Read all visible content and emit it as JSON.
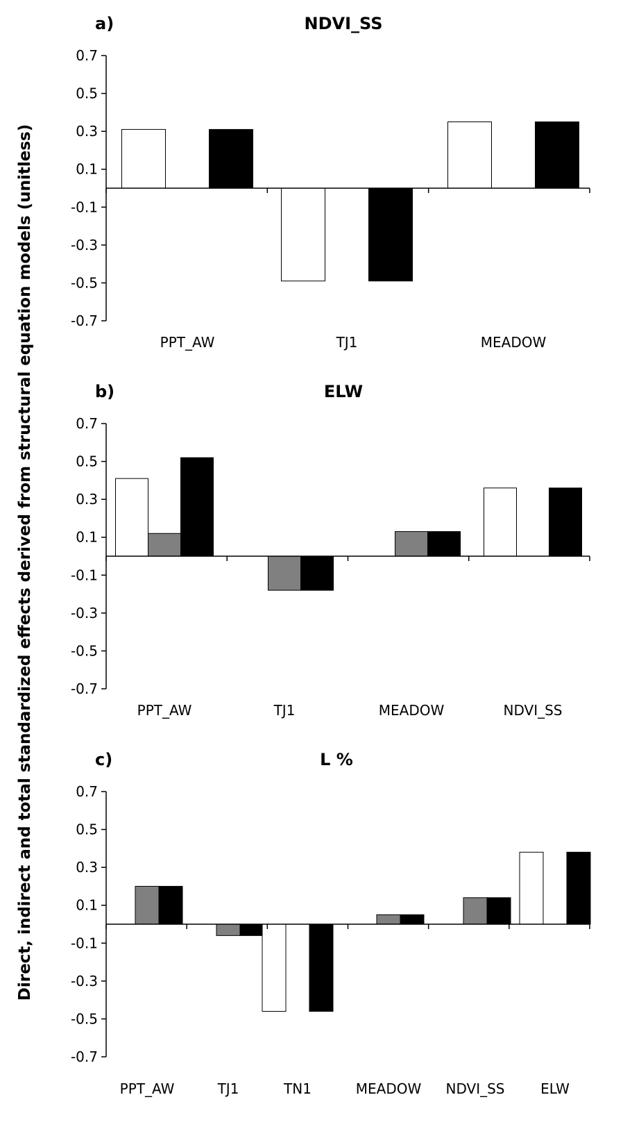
{
  "y_axis_title": "Direct, indirect and total standardized effects derived from structural equation models (unitless)",
  "chart_data": [
    {
      "type": "bar",
      "panel": "a)",
      "title": "NDVI_SS",
      "categories": [
        "PPT_AW",
        "TJ1",
        "MEADOW"
      ],
      "series": [
        {
          "color": "#ffffff",
          "values": [
            0.31,
            -0.49,
            0.35
          ]
        },
        {
          "color": "#808080",
          "values": [
            0,
            0,
            0
          ]
        },
        {
          "color": "#000000",
          "values": [
            0.31,
            -0.49,
            0.35
          ]
        }
      ],
      "yticks": [
        "0.7",
        "0.5",
        "0.3",
        "0.1",
        "-0.1",
        "-0.3",
        "-0.5",
        "-0.7"
      ],
      "ylim": [
        -0.7,
        0.7
      ]
    },
    {
      "type": "bar",
      "panel": "b)",
      "title": "ELW",
      "categories": [
        "PPT_AW",
        "TJ1",
        "MEADOW",
        "NDVI_SS"
      ],
      "series": [
        {
          "color": "#ffffff",
          "values": [
            0.41,
            0,
            0,
            0.36
          ]
        },
        {
          "color": "#808080",
          "values": [
            0.12,
            -0.18,
            0.13,
            0
          ]
        },
        {
          "color": "#000000",
          "values": [
            0.52,
            -0.18,
            0.13,
            0.36
          ]
        }
      ],
      "yticks": [
        "0.7",
        "0.5",
        "0.3",
        "0.1",
        "-0.1",
        "-0.3",
        "-0.5",
        "-0.7"
      ],
      "ylim": [
        -0.7,
        0.7
      ]
    },
    {
      "type": "bar",
      "panel": "c)",
      "title": "L %",
      "categories": [
        "PPT_AW",
        "TJ1",
        "TN1",
        "MEADOW",
        "NDVI_SS",
        "ELW"
      ],
      "series": [
        {
          "color": "#ffffff",
          "values": [
            0,
            0,
            -0.46,
            0,
            0,
            0.38
          ]
        },
        {
          "color": "#808080",
          "values": [
            0.2,
            -0.06,
            0,
            0.05,
            0.14,
            0
          ]
        },
        {
          "color": "#000000",
          "values": [
            0.2,
            -0.06,
            -0.46,
            0.05,
            0.14,
            0.38
          ]
        }
      ],
      "yticks": [
        "0.7",
        "0.5",
        "0.3",
        "0.1",
        "-0.1",
        "-0.3",
        "-0.5",
        "-0.7"
      ],
      "ylim": [
        -0.7,
        0.7
      ]
    }
  ]
}
